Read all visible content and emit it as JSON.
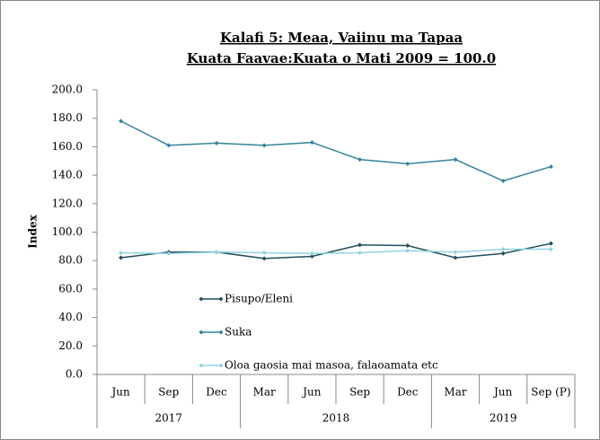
{
  "chart_data": {
    "type": "line",
    "title": "Kalafi 5: Meaa, Vaiinu ma Tapaa",
    "subtitle": "Kuata Faavae:Kuata o Mati 2009  = 100.0",
    "y_label": "Index",
    "categories": [
      "Jun",
      "Sep",
      "Dec",
      "Mar",
      "Jun",
      "Sep",
      "Dec",
      "Mar",
      "Jun",
      "Sep (P)"
    ],
    "year_groups": [
      {
        "label": "2017",
        "count": 3
      },
      {
        "label": "2018",
        "count": 4
      },
      {
        "label": "2019",
        "count": 3
      }
    ],
    "series": [
      {
        "name": "Pisupo/Eleni",
        "color": "#1f4e5f",
        "values": [
          82,
          86,
          86,
          81.5,
          83,
          91,
          90.5,
          82,
          85,
          92
        ]
      },
      {
        "name": "Suka",
        "color": "#31849b",
        "values": [
          178,
          161,
          162.5,
          161,
          163,
          151,
          148,
          151,
          136,
          146
        ]
      },
      {
        "name": "Oloa  gaosia mai masoa, falaoamata etc",
        "color": "#8fd3e0",
        "values": [
          85.5,
          85,
          86,
          85.5,
          85,
          85.5,
          87,
          86,
          88,
          88
        ]
      }
    ],
    "ylim": [
      0,
      200
    ],
    "yticks": [
      {
        "value": 0,
        "label": "0.0"
      },
      {
        "value": 20,
        "label": "20.0"
      },
      {
        "value": 40,
        "label": "40.0"
      },
      {
        "value": 60,
        "label": "60.0"
      },
      {
        "value": 80,
        "label": "80.0"
      },
      {
        "value": 100,
        "label": "100.0"
      },
      {
        "value": 120,
        "label": "120.0"
      },
      {
        "value": 140,
        "label": "140.0"
      },
      {
        "value": 160,
        "label": "160.0"
      },
      {
        "value": 180,
        "label": "180.0"
      },
      {
        "value": 200,
        "label": "200.0"
      }
    ],
    "grid": false
  }
}
